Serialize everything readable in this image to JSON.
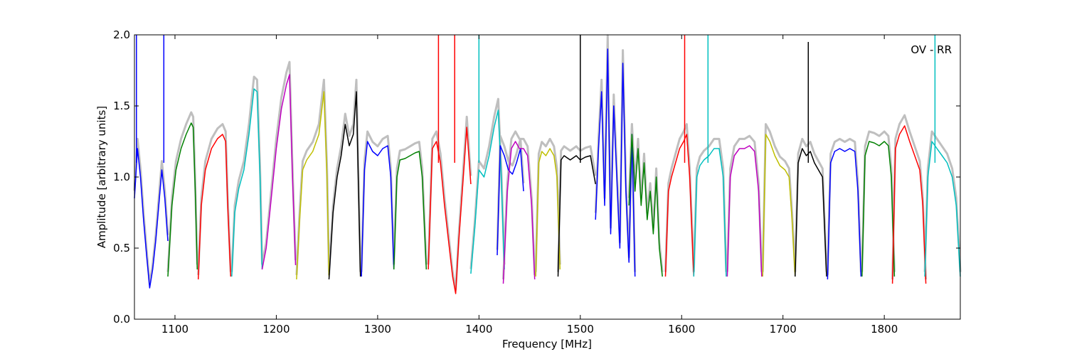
{
  "chart_data": {
    "type": "line",
    "annotation": "OV - RR",
    "xlabel": "Frequency [MHz]",
    "ylabel": "Amplitude [arbitrary units]",
    "xlim": [
      1060,
      1875
    ],
    "ylim": [
      0.0,
      2.0
    ],
    "x_ticks": [
      1100,
      1200,
      1300,
      1400,
      1500,
      1600,
      1700,
      1800
    ],
    "x_tick_labels": [
      "1100",
      "1200",
      "1300",
      "1400",
      "1500",
      "1600",
      "1700",
      "1800"
    ],
    "y_ticks": [
      0.0,
      0.5,
      1.0,
      1.5,
      2.0
    ],
    "y_tick_labels": [
      "0.0",
      "0.5",
      "1.0",
      "1.5",
      "2.0"
    ],
    "grid": false,
    "reference_color": "#bfbfbf",
    "bands": [
      {
        "color": "#0000ff",
        "x": [
          1060,
          1063,
          1066,
          1069,
          1072,
          1075,
          1078,
          1081,
          1084,
          1087,
          1090,
          1093
        ],
        "y": [
          0.85,
          1.2,
          1.0,
          0.7,
          0.45,
          0.22,
          0.35,
          0.55,
          0.8,
          1.05,
          0.85,
          0.55
        ]
      },
      {
        "color": "#008000",
        "x": [
          1093,
          1097,
          1101,
          1106,
          1111,
          1116,
          1118,
          1120,
          1122
        ],
        "y": [
          0.3,
          0.8,
          1.05,
          1.2,
          1.3,
          1.38,
          1.35,
          0.9,
          0.35
        ]
      },
      {
        "color": "#ff0000",
        "x": [
          1123,
          1126,
          1130,
          1136,
          1142,
          1147,
          1150,
          1152,
          1155
        ],
        "y": [
          0.28,
          0.8,
          1.05,
          1.2,
          1.27,
          1.3,
          1.25,
          0.8,
          0.3
        ]
      },
      {
        "color": "#00bfbf",
        "x": [
          1156,
          1159,
          1163,
          1168,
          1173,
          1178,
          1181,
          1184,
          1186
        ],
        "y": [
          0.3,
          0.75,
          0.92,
          1.05,
          1.3,
          1.62,
          1.6,
          1.0,
          0.35
        ]
      },
      {
        "color": "#bf00bf",
        "x": [
          1186,
          1190,
          1195,
          1200,
          1205,
          1210,
          1213,
          1216,
          1219
        ],
        "y": [
          0.35,
          0.5,
          0.85,
          1.2,
          1.48,
          1.65,
          1.72,
          1.0,
          0.38
        ]
      },
      {
        "color": "#bfbf00",
        "x": [
          1220,
          1223,
          1226,
          1230,
          1236,
          1242,
          1247,
          1250,
          1252
        ],
        "y": [
          0.28,
          0.7,
          1.05,
          1.12,
          1.18,
          1.3,
          1.6,
          1.0,
          0.3
        ]
      },
      {
        "color": "#000000",
        "x": [
          1252,
          1256,
          1260,
          1264,
          1268,
          1272,
          1276,
          1279,
          1283
        ],
        "y": [
          0.28,
          0.75,
          1.0,
          1.15,
          1.37,
          1.22,
          1.3,
          1.6,
          0.3
        ]
      },
      {
        "color": "#0000ff",
        "x": [
          1284,
          1287,
          1290,
          1295,
          1300,
          1305,
          1310,
          1313,
          1316
        ],
        "y": [
          0.3,
          1.05,
          1.25,
          1.18,
          1.15,
          1.2,
          1.22,
          1.0,
          0.35
        ]
      },
      {
        "color": "#008000",
        "x": [
          1316,
          1319,
          1322,
          1327,
          1332,
          1337,
          1341,
          1344,
          1348
        ],
        "y": [
          0.35,
          1.0,
          1.12,
          1.13,
          1.15,
          1.17,
          1.18,
          1.0,
          0.35
        ]
      },
      {
        "color": "#ff0000",
        "x": [
          1350,
          1354,
          1358,
          1362,
          1366,
          1370,
          1374,
          1377,
          1380,
          1384,
          1388,
          1392
        ],
        "y": [
          0.35,
          1.2,
          1.25,
          1.1,
          0.8,
          0.55,
          0.3,
          0.18,
          0.55,
          0.95,
          1.35,
          0.95
        ]
      },
      {
        "color": "#00bfbf",
        "x": [
          1392,
          1396,
          1400,
          1405,
          1410,
          1415,
          1419,
          1422,
          1425
        ],
        "y": [
          0.32,
          0.65,
          1.05,
          1.0,
          1.15,
          1.35,
          1.47,
          1.0,
          0.35
        ]
      },
      {
        "color": "#0000ff",
        "x": [
          1418,
          1421,
          1425,
          1429,
          1433,
          1437,
          1441,
          1444
        ],
        "y": [
          0.45,
          1.22,
          1.15,
          1.05,
          1.02,
          1.1,
          1.2,
          0.9
        ]
      },
      {
        "color": "#bf00bf",
        "x": [
          1424,
          1428,
          1432,
          1436,
          1440,
          1444,
          1448,
          1452,
          1455
        ],
        "y": [
          0.25,
          0.9,
          1.2,
          1.25,
          1.2,
          1.2,
          1.15,
          0.8,
          0.28
        ]
      },
      {
        "color": "#bfbf00",
        "x": [
          1456,
          1459,
          1462,
          1466,
          1470,
          1474,
          1477,
          1480
        ],
        "y": [
          0.3,
          1.1,
          1.18,
          1.15,
          1.2,
          1.15,
          1.0,
          0.35
        ]
      },
      {
        "color": "#000000",
        "x": [
          1478,
          1481,
          1484,
          1490,
          1496,
          1500,
          1505,
          1510,
          1515
        ],
        "y": [
          0.3,
          1.12,
          1.15,
          1.12,
          1.15,
          1.12,
          1.14,
          1.15,
          0.95
        ]
      },
      {
        "color": "#0000ff",
        "x": [
          1515,
          1518,
          1521,
          1524,
          1527,
          1530,
          1533,
          1536,
          1539,
          1542,
          1545,
          1548,
          1551,
          1554
        ],
        "y": [
          0.7,
          1.2,
          1.6,
          0.8,
          1.9,
          0.6,
          1.5,
          1.0,
          0.5,
          1.8,
          0.9,
          0.4,
          1.3,
          0.3
        ]
      },
      {
        "color": "#008000",
        "x": [
          1548,
          1551,
          1554,
          1557,
          1560,
          1563,
          1566,
          1569,
          1572,
          1575,
          1578,
          1581
        ],
        "y": [
          0.8,
          1.3,
          0.9,
          1.2,
          0.8,
          1.1,
          0.7,
          0.9,
          0.6,
          1.0,
          0.5,
          0.3
        ]
      },
      {
        "color": "#ff0000",
        "x": [
          1584,
          1587,
          1590,
          1594,
          1598,
          1602,
          1605,
          1608,
          1612
        ],
        "y": [
          0.3,
          0.9,
          1.0,
          1.1,
          1.2,
          1.25,
          1.3,
          1.0,
          0.3
        ]
      },
      {
        "color": "#00bfbf",
        "x": [
          1612,
          1615,
          1618,
          1622,
          1627,
          1632,
          1637,
          1641,
          1644
        ],
        "y": [
          0.3,
          1.0,
          1.08,
          1.12,
          1.15,
          1.2,
          1.2,
          1.0,
          0.3
        ]
      },
      {
        "color": "#bf00bf",
        "x": [
          1645,
          1648,
          1652,
          1657,
          1662,
          1667,
          1672,
          1676,
          1679
        ],
        "y": [
          0.3,
          1.0,
          1.15,
          1.2,
          1.2,
          1.22,
          1.18,
          0.9,
          0.3
        ]
      },
      {
        "color": "#bfbf00",
        "x": [
          1680,
          1683,
          1687,
          1692,
          1697,
          1702,
          1706,
          1709,
          1712
        ],
        "y": [
          0.3,
          1.3,
          1.25,
          1.15,
          1.08,
          1.05,
          1.0,
          0.7,
          0.3
        ]
      },
      {
        "color": "#000000",
        "x": [
          1712,
          1715,
          1719,
          1723,
          1727,
          1731,
          1735,
          1739,
          1743
        ],
        "y": [
          0.3,
          1.1,
          1.2,
          1.15,
          1.18,
          1.1,
          1.05,
          1.0,
          0.3
        ]
      },
      {
        "color": "#0000ff",
        "x": [
          1744,
          1747,
          1751,
          1756,
          1761,
          1766,
          1771,
          1774,
          1777
        ],
        "y": [
          0.28,
          1.1,
          1.18,
          1.2,
          1.18,
          1.2,
          1.18,
          0.9,
          0.3
        ]
      },
      {
        "color": "#008000",
        "x": [
          1778,
          1781,
          1785,
          1790,
          1795,
          1800,
          1804,
          1807,
          1810
        ],
        "y": [
          0.3,
          1.15,
          1.25,
          1.24,
          1.22,
          1.25,
          1.22,
          1.0,
          0.3
        ]
      },
      {
        "color": "#ff0000",
        "x": [
          1808,
          1811,
          1815,
          1820,
          1825,
          1830,
          1835,
          1838,
          1841
        ],
        "y": [
          0.25,
          1.2,
          1.3,
          1.36,
          1.25,
          1.15,
          1.05,
          0.8,
          0.25
        ]
      },
      {
        "color": "#00bfbf",
        "x": [
          1840,
          1843,
          1847,
          1852,
          1857,
          1862,
          1867,
          1871,
          1875
        ],
        "y": [
          0.3,
          1.0,
          1.25,
          1.2,
          1.15,
          1.1,
          1.0,
          0.8,
          0.3
        ]
      }
    ],
    "spikes": [
      {
        "color": "#0000ff",
        "x": 1062,
        "y": 2.0
      },
      {
        "color": "#0000ff",
        "x": 1089,
        "y": 2.0
      },
      {
        "color": "#ff0000",
        "x": 1360,
        "y": 2.0
      },
      {
        "color": "#ff0000",
        "x": 1376,
        "y": 2.0
      },
      {
        "color": "#00bfbf",
        "x": 1400,
        "y": 2.0
      },
      {
        "color": "#000000",
        "x": 1500,
        "y": 2.0
      },
      {
        "color": "#ff0000",
        "x": 1603,
        "y": 2.0
      },
      {
        "color": "#00bfbf",
        "x": 1626,
        "y": 2.0
      },
      {
        "color": "#000000",
        "x": 1725,
        "y": 1.95
      },
      {
        "color": "#00bfbf",
        "x": 1850,
        "y": 2.0
      }
    ]
  }
}
